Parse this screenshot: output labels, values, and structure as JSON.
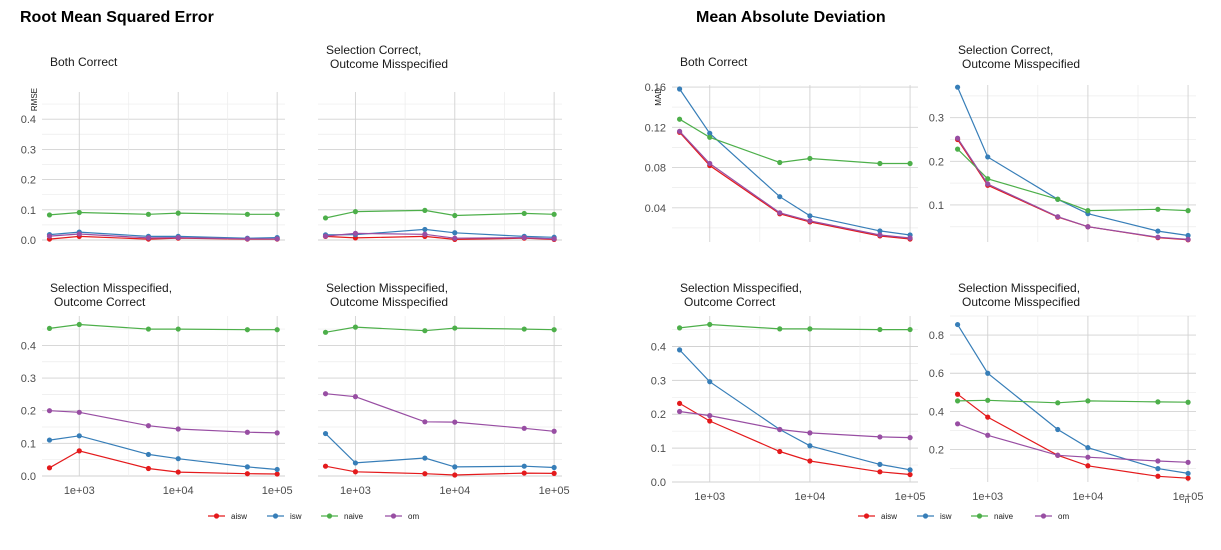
{
  "legend": [
    {
      "name": "aisw",
      "color": "#E41A1C"
    },
    {
      "name": "isw",
      "color": "#377EB8"
    },
    {
      "name": "naive",
      "color": "#4DAF4A"
    },
    {
      "name": "om",
      "color": "#984EA3"
    }
  ],
  "chart_data": [
    {
      "type": "line",
      "title": "Root Mean Squared Error",
      "xlabel": "n",
      "ylabel": "RMSE",
      "x_scale": "log10",
      "x_ticks": [
        "1e+03",
        "1e+04",
        "1e+05"
      ],
      "x": [
        500,
        1000,
        5000,
        10000,
        50000,
        100000
      ],
      "panels": [
        {
          "title": "Both Correct",
          "ylim": [
            0,
            0.49
          ],
          "y_ticks": [
            "0.0",
            "0.1",
            "0.2",
            "0.3",
            "0.4"
          ],
          "series": [
            {
              "name": "aisw",
              "values": [
                0.003,
                0.012,
                0.003,
                0.006,
                0.003,
                0.003
              ]
            },
            {
              "name": "isw",
              "values": [
                0.018,
                0.026,
                0.012,
                0.012,
                0.006,
                0.008
              ]
            },
            {
              "name": "naive",
              "values": [
                0.083,
                0.091,
                0.085,
                0.089,
                0.085,
                0.085
              ]
            },
            {
              "name": "om",
              "values": [
                0.013,
                0.02,
                0.007,
                0.008,
                0.004,
                0.004
              ]
            }
          ]
        },
        {
          "title": "Selection Correct,\nOutcome Misspecified",
          "ylim": [
            0,
            0.49
          ],
          "y_ticks": [],
          "series": [
            {
              "name": "aisw",
              "values": [
                0.012,
                0.007,
                0.012,
                0.002,
                0.006,
                0.002
              ]
            },
            {
              "name": "isw",
              "values": [
                0.017,
                0.018,
                0.035,
                0.024,
                0.012,
                0.009
              ]
            },
            {
              "name": "naive",
              "values": [
                0.073,
                0.094,
                0.098,
                0.081,
                0.088,
                0.085
              ]
            },
            {
              "name": "om",
              "values": [
                0.013,
                0.022,
                0.019,
                0.006,
                0.008,
                0.004
              ]
            }
          ]
        },
        {
          "title": "Selection Misspecified,\nOutcome Correct",
          "ylim": [
            0,
            0.49
          ],
          "y_ticks": [
            "0.0",
            "0.1",
            "0.2",
            "0.3",
            "0.4"
          ],
          "series": [
            {
              "name": "aisw",
              "values": [
                0.025,
                0.077,
                0.023,
                0.012,
                0.007,
                0.006
              ]
            },
            {
              "name": "isw",
              "values": [
                0.11,
                0.123,
                0.066,
                0.053,
                0.028,
                0.02
              ]
            },
            {
              "name": "naive",
              "values": [
                0.452,
                0.464,
                0.45,
                0.45,
                0.448,
                0.448
              ]
            },
            {
              "name": "om",
              "values": [
                0.2,
                0.195,
                0.154,
                0.144,
                0.134,
                0.132
              ]
            }
          ]
        },
        {
          "title": "Selection Misspecified,\nOutcome Misspecified",
          "ylim": [
            0,
            0.49
          ],
          "y_ticks": [],
          "series": [
            {
              "name": "aisw",
              "values": [
                0.03,
                0.013,
                0.007,
                0.003,
                0.009,
                0.008
              ]
            },
            {
              "name": "isw",
              "values": [
                0.13,
                0.04,
                0.055,
                0.028,
                0.03,
                0.026
              ]
            },
            {
              "name": "naive",
              "values": [
                0.44,
                0.456,
                0.445,
                0.453,
                0.45,
                0.448
              ]
            },
            {
              "name": "om",
              "values": [
                0.252,
                0.243,
                0.166,
                0.165,
                0.146,
                0.137
              ]
            }
          ]
        }
      ]
    },
    {
      "type": "line",
      "title": "Mean Absolute Deviation",
      "xlabel": "n",
      "ylabel": "MAD",
      "x_scale": "log10",
      "x_ticks": [
        "1e+03",
        "1e+04",
        "1e+05"
      ],
      "x": [
        500,
        1000,
        5000,
        10000,
        50000,
        100000
      ],
      "panels": [
        {
          "title": "Both Correct",
          "ylim": [
            0.006,
            0.162
          ],
          "y_ticks": [
            "0.04",
            "0.08",
            "0.12",
            "0.16"
          ],
          "series": [
            {
              "name": "aisw",
              "values": [
                0.115,
                0.082,
                0.034,
                0.026,
                0.012,
                0.009
              ]
            },
            {
              "name": "isw",
              "values": [
                0.158,
                0.114,
                0.051,
                0.032,
                0.017,
                0.013
              ]
            },
            {
              "name": "naive",
              "values": [
                0.128,
                0.11,
                0.085,
                0.089,
                0.084,
                0.084
              ]
            },
            {
              "name": "om",
              "values": [
                0.116,
                0.084,
                0.035,
                0.027,
                0.013,
                0.01
              ]
            }
          ]
        },
        {
          "title": "Selection Correct,\nOutcome Misspecified",
          "ylim": [
            0.015,
            0.375
          ],
          "y_ticks": [
            "0.1",
            "0.2",
            "0.3"
          ],
          "series": [
            {
              "name": "aisw",
              "values": [
                0.25,
                0.145,
                0.072,
                0.05,
                0.025,
                0.02
              ]
            },
            {
              "name": "isw",
              "values": [
                0.37,
                0.21,
                0.113,
                0.08,
                0.04,
                0.03
              ]
            },
            {
              "name": "naive",
              "values": [
                0.228,
                0.16,
                0.113,
                0.087,
                0.09,
                0.087
              ]
            },
            {
              "name": "om",
              "values": [
                0.253,
                0.148,
                0.073,
                0.05,
                0.026,
                0.021
              ]
            }
          ]
        },
        {
          "title": "Selection Misspecified,\nOutcome Correct",
          "ylim": [
            0,
            0.49
          ],
          "y_ticks": [
            "0.0",
            "0.1",
            "0.2",
            "0.3",
            "0.4"
          ],
          "series": [
            {
              "name": "aisw",
              "values": [
                0.232,
                0.18,
                0.09,
                0.062,
                0.03,
                0.022
              ]
            },
            {
              "name": "isw",
              "values": [
                0.39,
                0.296,
                0.155,
                0.107,
                0.052,
                0.036
              ]
            },
            {
              "name": "naive",
              "values": [
                0.455,
                0.465,
                0.452,
                0.452,
                0.45,
                0.45
              ]
            },
            {
              "name": "om",
              "values": [
                0.208,
                0.196,
                0.155,
                0.145,
                0.133,
                0.131
              ]
            }
          ]
        },
        {
          "title": "Selection Misspecified,\nOutcome Misspecified",
          "ylim": [
            0.03,
            0.9
          ],
          "y_ticks": [
            "0.2",
            "0.4",
            "0.6",
            "0.8"
          ],
          "series": [
            {
              "name": "aisw",
              "values": [
                0.49,
                0.37,
                0.17,
                0.115,
                0.06,
                0.05
              ]
            },
            {
              "name": "isw",
              "values": [
                0.855,
                0.6,
                0.305,
                0.21,
                0.1,
                0.075
              ]
            },
            {
              "name": "naive",
              "values": [
                0.455,
                0.458,
                0.445,
                0.455,
                0.45,
                0.448
              ]
            },
            {
              "name": "om",
              "values": [
                0.335,
                0.275,
                0.17,
                0.16,
                0.14,
                0.133
              ]
            }
          ]
        }
      ]
    }
  ]
}
